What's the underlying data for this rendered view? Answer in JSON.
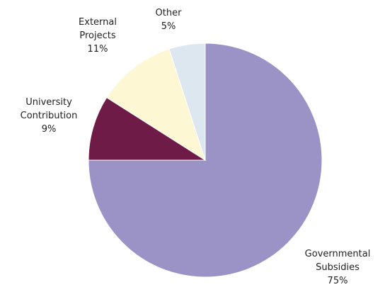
{
  "chart_data": {
    "type": "pie",
    "title": "",
    "legend": "none",
    "slices": [
      {
        "label": [
          "Governmental",
          "Subsidies"
        ],
        "value": 75,
        "value_label": "75%",
        "color": "#9b93c6"
      },
      {
        "label": [
          "University",
          "Contribution"
        ],
        "value": 9,
        "value_label": "9%",
        "color": "#6e1c47"
      },
      {
        "label": [
          "External",
          "Projects"
        ],
        "value": 11,
        "value_label": "11%",
        "color": "#fdf7d3"
      },
      {
        "label": [
          "Other"
        ],
        "value": 5,
        "value_label": "5%",
        "color": "#dde7ef"
      }
    ]
  }
}
